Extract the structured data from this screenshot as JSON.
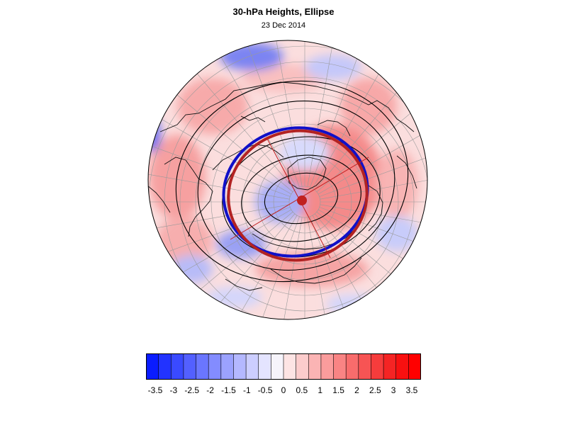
{
  "title": "30-hPa Heights, Ellipse",
  "subtitle": "23 Dec 2014",
  "colorbar": {
    "colors": [
      "#0a1cff",
      "#2233ff",
      "#3a4aff",
      "#5360ff",
      "#6a76ff",
      "#838cff",
      "#9ba2ff",
      "#b4b8ff",
      "#ccceff",
      "#e4e4ff",
      "#f6f4fb",
      "#fde4e4",
      "#fccccc",
      "#fbb4b4",
      "#fa9c9c",
      "#f98484",
      "#f86c6c",
      "#f75454",
      "#f63c3c",
      "#f52424",
      "#f81010",
      "#ff0000"
    ],
    "labels": [
      "-3.5",
      "-3",
      "-2.5",
      "-2",
      "-1.5",
      "-1",
      "-0.5",
      "0",
      "0.5",
      "1",
      "1.5",
      "2",
      "2.5",
      "3",
      "3.5"
    ]
  },
  "map": {
    "projection": "orthographic-north-polar",
    "blue_ellipse_color": "#1010c8",
    "red_ellipse_color": "#b22222",
    "center_dot_color": "#c02020"
  }
}
